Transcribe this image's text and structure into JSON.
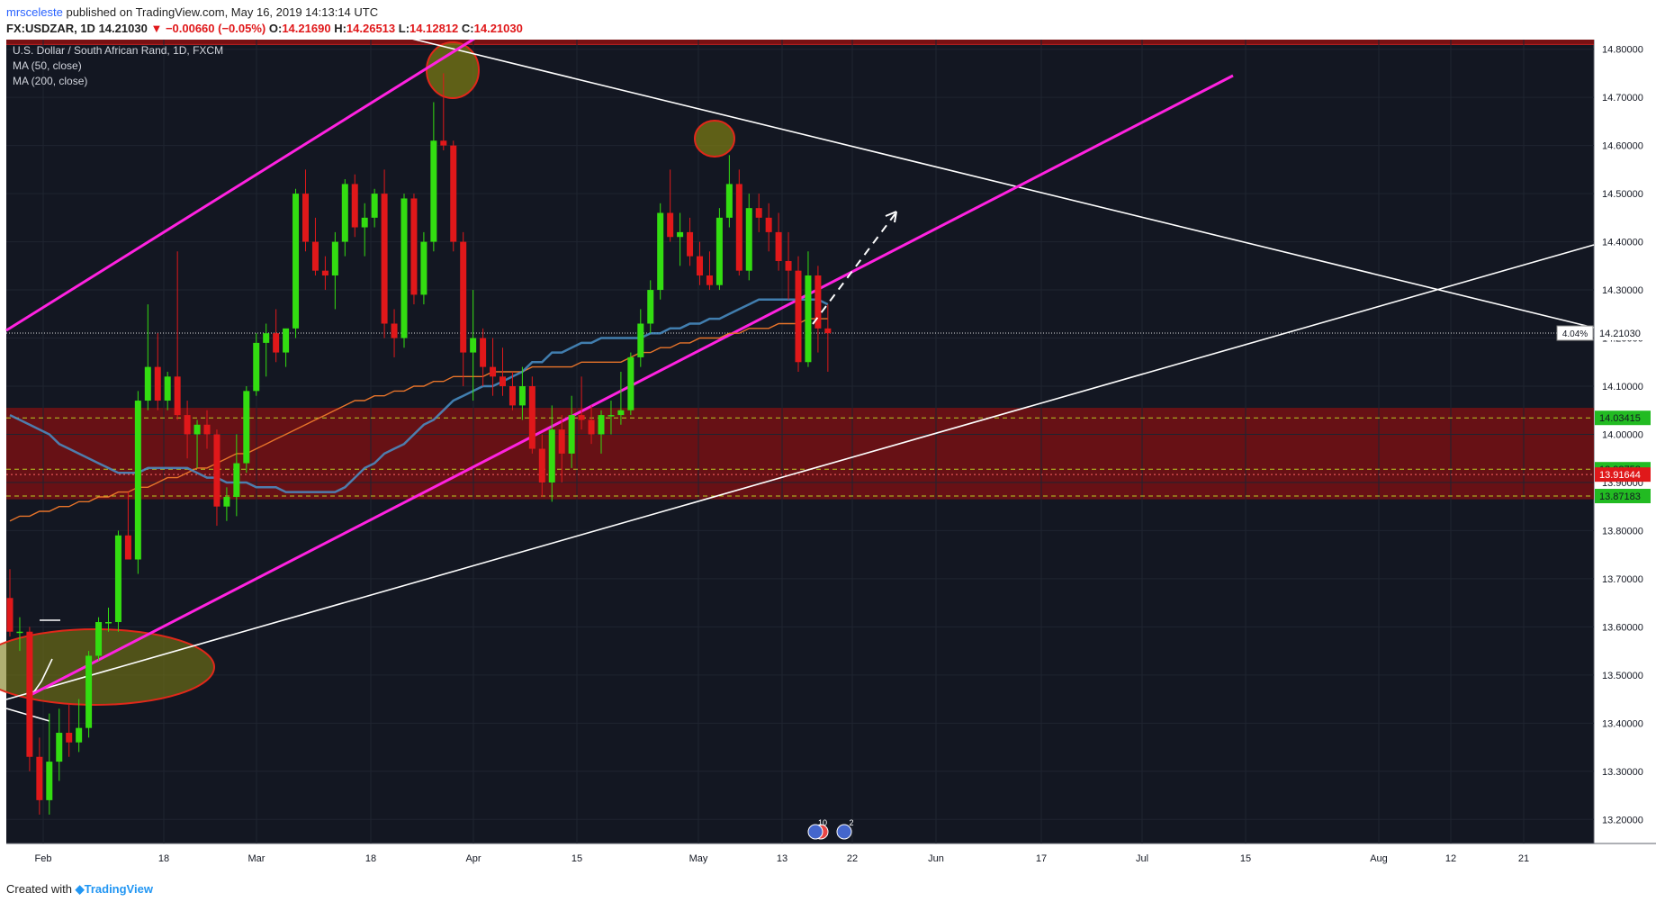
{
  "header": {
    "author": "mrsceleste",
    "published_text": " published on TradingView.com, May 16, 2019 14:13:14 UTC",
    "symbol": "FX:USDZAR, 1D",
    "last": "14.21030",
    "change_icon": "down-triangle-icon",
    "change": "−0.00660 (−0.05%)",
    "o_label": "O:",
    "o_value": "14.21690",
    "h_label": "H:",
    "h_value": "14.26513",
    "l_label": "L:",
    "l_value": "14.12812",
    "c_label": "C:",
    "c_value": "14.21030"
  },
  "legend": {
    "title": "U.S. Dollar / South African Rand, 1D, FXCM",
    "ma50": "MA (50, close)",
    "ma200": "MA (200, close)"
  },
  "footer": {
    "created_label": "Created with",
    "logo_icon": "tradingview-logo-icon",
    "logo_text": "TradingView"
  },
  "colors": {
    "background": "#131722",
    "up": "#33dd11",
    "down": "#e0181a",
    "ma50": "#4a90c8",
    "ma200": "#e8742a",
    "channel": "#ff22e0",
    "trendline": "#ffffff",
    "zone": "#8b1010"
  },
  "chart_data": {
    "type": "candlestick",
    "title": "U.S. Dollar / South African Rand, 1D, FXCM",
    "symbol": "FX:USDZAR",
    "ylim": [
      13.15,
      14.82
    ],
    "y_ticks": [
      "14.80000",
      "14.70000",
      "14.60000",
      "14.50000",
      "14.40000",
      "14.30000",
      "14.20000",
      "14.10000",
      "14.00000",
      "13.90000",
      "13.80000",
      "13.70000",
      "13.60000",
      "13.50000",
      "13.40000",
      "13.30000",
      "13.20000"
    ],
    "x_ticks": [
      "Feb",
      "18",
      "Mar",
      "18",
      "Apr",
      "15",
      "May",
      "13",
      "22",
      "Jun",
      "17",
      "Jul",
      "15",
      "Aug",
      "12",
      "21"
    ],
    "price_labels": {
      "last_pct": "4.04%",
      "last": "14.21030",
      "level1": "14.03415",
      "level2": "13.92758",
      "level3": "13.91644",
      "level4": "13.87183"
    },
    "event_badges": [
      "10",
      "2"
    ],
    "candles": [
      {
        "o": 13.66,
        "h": 13.72,
        "l": 13.58,
        "c": 13.59
      },
      {
        "o": 13.59,
        "h": 13.62,
        "l": 13.55,
        "c": 13.59
      },
      {
        "o": 13.59,
        "h": 13.6,
        "l": 13.3,
        "c": 13.33
      },
      {
        "o": 13.33,
        "h": 13.37,
        "l": 13.21,
        "c": 13.24
      },
      {
        "o": 13.24,
        "h": 13.42,
        "l": 13.21,
        "c": 13.32
      },
      {
        "o": 13.32,
        "h": 13.43,
        "l": 13.28,
        "c": 13.38
      },
      {
        "o": 13.38,
        "h": 13.44,
        "l": 13.33,
        "c": 13.36
      },
      {
        "o": 13.36,
        "h": 13.45,
        "l": 13.34,
        "c": 13.39
      },
      {
        "o": 13.39,
        "h": 13.55,
        "l": 13.37,
        "c": 13.54
      },
      {
        "o": 13.54,
        "h": 13.62,
        "l": 13.53,
        "c": 13.61
      },
      {
        "o": 13.61,
        "h": 13.64,
        "l": 13.59,
        "c": 13.61
      },
      {
        "o": 13.61,
        "h": 13.8,
        "l": 13.59,
        "c": 13.79
      },
      {
        "o": 13.79,
        "h": 13.88,
        "l": 13.74,
        "c": 13.74
      },
      {
        "o": 13.74,
        "h": 14.09,
        "l": 13.71,
        "c": 14.07
      },
      {
        "o": 14.07,
        "h": 14.27,
        "l": 14.05,
        "c": 14.14
      },
      {
        "o": 14.14,
        "h": 14.21,
        "l": 14.05,
        "c": 14.07
      },
      {
        "o": 14.07,
        "h": 14.13,
        "l": 14.05,
        "c": 14.12
      },
      {
        "o": 14.12,
        "h": 14.38,
        "l": 14.03,
        "c": 14.04
      },
      {
        "o": 14.04,
        "h": 14.07,
        "l": 13.95,
        "c": 14.0
      },
      {
        "o": 14.0,
        "h": 14.03,
        "l": 13.93,
        "c": 14.02
      },
      {
        "o": 14.02,
        "h": 14.05,
        "l": 13.97,
        "c": 14.0
      },
      {
        "o": 14.0,
        "h": 14.01,
        "l": 13.81,
        "c": 13.85
      },
      {
        "o": 13.85,
        "h": 13.89,
        "l": 13.82,
        "c": 13.87
      },
      {
        "o": 13.87,
        "h": 14.0,
        "l": 13.83,
        "c": 13.94
      },
      {
        "o": 13.94,
        "h": 14.1,
        "l": 13.92,
        "c": 14.09
      },
      {
        "o": 14.09,
        "h": 14.21,
        "l": 14.08,
        "c": 14.19
      },
      {
        "o": 14.19,
        "h": 14.23,
        "l": 14.12,
        "c": 14.21
      },
      {
        "o": 14.21,
        "h": 14.26,
        "l": 14.15,
        "c": 14.17
      },
      {
        "o": 14.17,
        "h": 14.21,
        "l": 14.14,
        "c": 14.22
      },
      {
        "o": 14.22,
        "h": 14.51,
        "l": 14.2,
        "c": 14.5
      },
      {
        "o": 14.5,
        "h": 14.55,
        "l": 14.38,
        "c": 14.4
      },
      {
        "o": 14.4,
        "h": 14.45,
        "l": 14.33,
        "c": 14.34
      },
      {
        "o": 14.34,
        "h": 14.37,
        "l": 14.3,
        "c": 14.33
      },
      {
        "o": 14.33,
        "h": 14.42,
        "l": 14.26,
        "c": 14.4
      },
      {
        "o": 14.4,
        "h": 14.53,
        "l": 14.37,
        "c": 14.52
      },
      {
        "o": 14.52,
        "h": 14.54,
        "l": 14.41,
        "c": 14.43
      },
      {
        "o": 14.43,
        "h": 14.48,
        "l": 14.37,
        "c": 14.45
      },
      {
        "o": 14.45,
        "h": 14.51,
        "l": 14.43,
        "c": 14.5
      },
      {
        "o": 14.5,
        "h": 14.55,
        "l": 14.2,
        "c": 14.23
      },
      {
        "o": 14.23,
        "h": 14.26,
        "l": 14.16,
        "c": 14.2
      },
      {
        "o": 14.2,
        "h": 14.5,
        "l": 14.18,
        "c": 14.49
      },
      {
        "o": 14.49,
        "h": 14.5,
        "l": 14.27,
        "c": 14.29
      },
      {
        "o": 14.29,
        "h": 14.42,
        "l": 14.27,
        "c": 14.4
      },
      {
        "o": 14.4,
        "h": 14.69,
        "l": 14.38,
        "c": 14.61
      },
      {
        "o": 14.61,
        "h": 14.75,
        "l": 14.59,
        "c": 14.6
      },
      {
        "o": 14.6,
        "h": 14.61,
        "l": 14.38,
        "c": 14.4
      },
      {
        "o": 14.4,
        "h": 14.42,
        "l": 14.1,
        "c": 14.17
      },
      {
        "o": 14.17,
        "h": 14.3,
        "l": 14.07,
        "c": 14.2
      },
      {
        "o": 14.2,
        "h": 14.22,
        "l": 14.1,
        "c": 14.14
      },
      {
        "o": 14.14,
        "h": 14.2,
        "l": 14.08,
        "c": 14.12
      },
      {
        "o": 14.12,
        "h": 14.18,
        "l": 14.08,
        "c": 14.1
      },
      {
        "o": 14.1,
        "h": 14.13,
        "l": 14.05,
        "c": 14.06
      },
      {
        "o": 14.06,
        "h": 14.14,
        "l": 14.03,
        "c": 14.1
      },
      {
        "o": 14.1,
        "h": 14.12,
        "l": 13.96,
        "c": 13.97
      },
      {
        "o": 13.97,
        "h": 14.0,
        "l": 13.87,
        "c": 13.9
      },
      {
        "o": 13.9,
        "h": 14.06,
        "l": 13.86,
        "c": 14.01
      },
      {
        "o": 14.01,
        "h": 14.04,
        "l": 13.9,
        "c": 13.96
      },
      {
        "o": 13.96,
        "h": 14.08,
        "l": 13.93,
        "c": 14.04
      },
      {
        "o": 14.04,
        "h": 14.12,
        "l": 14.01,
        "c": 14.03
      },
      {
        "o": 14.03,
        "h": 14.06,
        "l": 13.98,
        "c": 14.0
      },
      {
        "o": 14.0,
        "h": 14.05,
        "l": 13.96,
        "c": 14.04
      },
      {
        "o": 14.04,
        "h": 14.07,
        "l": 14.0,
        "c": 14.04
      },
      {
        "o": 14.04,
        "h": 14.13,
        "l": 14.02,
        "c": 14.05
      },
      {
        "o": 14.05,
        "h": 14.17,
        "l": 14.04,
        "c": 14.16
      },
      {
        "o": 14.16,
        "h": 14.26,
        "l": 14.14,
        "c": 14.23
      },
      {
        "o": 14.23,
        "h": 14.32,
        "l": 14.21,
        "c": 14.3
      },
      {
        "o": 14.3,
        "h": 14.48,
        "l": 14.28,
        "c": 14.46
      },
      {
        "o": 14.46,
        "h": 14.55,
        "l": 14.4,
        "c": 14.41
      },
      {
        "o": 14.41,
        "h": 14.46,
        "l": 14.35,
        "c": 14.42
      },
      {
        "o": 14.42,
        "h": 14.45,
        "l": 14.35,
        "c": 14.37
      },
      {
        "o": 14.37,
        "h": 14.4,
        "l": 14.31,
        "c": 14.33
      },
      {
        "o": 14.33,
        "h": 14.38,
        "l": 14.3,
        "c": 14.31
      },
      {
        "o": 14.31,
        "h": 14.47,
        "l": 14.3,
        "c": 14.45
      },
      {
        "o": 14.45,
        "h": 14.58,
        "l": 14.43,
        "c": 14.52
      },
      {
        "o": 14.52,
        "h": 14.55,
        "l": 14.33,
        "c": 14.34
      },
      {
        "o": 14.34,
        "h": 14.5,
        "l": 14.32,
        "c": 14.47
      },
      {
        "o": 14.47,
        "h": 14.5,
        "l": 14.42,
        "c": 14.45
      },
      {
        "o": 14.45,
        "h": 14.48,
        "l": 14.38,
        "c": 14.42
      },
      {
        "o": 14.42,
        "h": 14.46,
        "l": 14.34,
        "c": 14.36
      },
      {
        "o": 14.36,
        "h": 14.42,
        "l": 14.28,
        "c": 14.34
      },
      {
        "o": 14.34,
        "h": 14.37,
        "l": 14.13,
        "c": 14.15
      },
      {
        "o": 14.15,
        "h": 14.38,
        "l": 14.14,
        "c": 14.33
      },
      {
        "o": 14.33,
        "h": 14.35,
        "l": 14.17,
        "c": 14.22
      },
      {
        "o": 14.22,
        "h": 14.27,
        "l": 14.13,
        "c": 14.21
      }
    ],
    "ma50": [
      14.04,
      14.03,
      14.02,
      14.01,
      14.0,
      13.98,
      13.97,
      13.96,
      13.95,
      13.94,
      13.93,
      13.92,
      13.92,
      13.92,
      13.93,
      13.93,
      13.93,
      13.93,
      13.93,
      13.92,
      13.91,
      13.91,
      13.9,
      13.9,
      13.9,
      13.89,
      13.89,
      13.89,
      13.88,
      13.88,
      13.88,
      13.88,
      13.88,
      13.88,
      13.89,
      13.91,
      13.93,
      13.94,
      13.96,
      13.97,
      13.98,
      14.0,
      14.02,
      14.03,
      14.05,
      14.07,
      14.08,
      14.09,
      14.1,
      14.1,
      14.11,
      14.12,
      14.13,
      14.15,
      14.15,
      14.17,
      14.17,
      14.18,
      14.19,
      14.19,
      14.2,
      14.2,
      14.2,
      14.2,
      14.2,
      14.21,
      14.21,
      14.22,
      14.22,
      14.23,
      14.23,
      14.24,
      14.24,
      14.25,
      14.26,
      14.27,
      14.28,
      14.28,
      14.28,
      14.28,
      14.28,
      14.28,
      14.28,
      14.27
    ],
    "ma200": [
      13.82,
      13.83,
      13.83,
      13.84,
      13.84,
      13.85,
      13.85,
      13.86,
      13.86,
      13.87,
      13.87,
      13.88,
      13.88,
      13.89,
      13.89,
      13.9,
      13.91,
      13.91,
      13.92,
      13.93,
      13.93,
      13.94,
      13.95,
      13.96,
      13.96,
      13.97,
      13.98,
      13.99,
      14.0,
      14.01,
      14.02,
      14.03,
      14.04,
      14.05,
      14.06,
      14.07,
      14.07,
      14.08,
      14.08,
      14.09,
      14.09,
      14.1,
      14.1,
      14.11,
      14.11,
      14.12,
      14.12,
      14.12,
      14.12,
      14.13,
      14.13,
      14.13,
      14.13,
      14.14,
      14.14,
      14.14,
      14.14,
      14.14,
      14.15,
      14.15,
      14.15,
      14.15,
      14.15,
      14.16,
      14.17,
      14.17,
      14.18,
      14.18,
      14.19,
      14.19,
      14.2,
      14.2,
      14.2,
      14.21,
      14.21,
      14.22,
      14.22,
      14.22,
      14.23,
      14.23,
      14.23,
      14.24,
      14.24,
      14.24
    ]
  }
}
